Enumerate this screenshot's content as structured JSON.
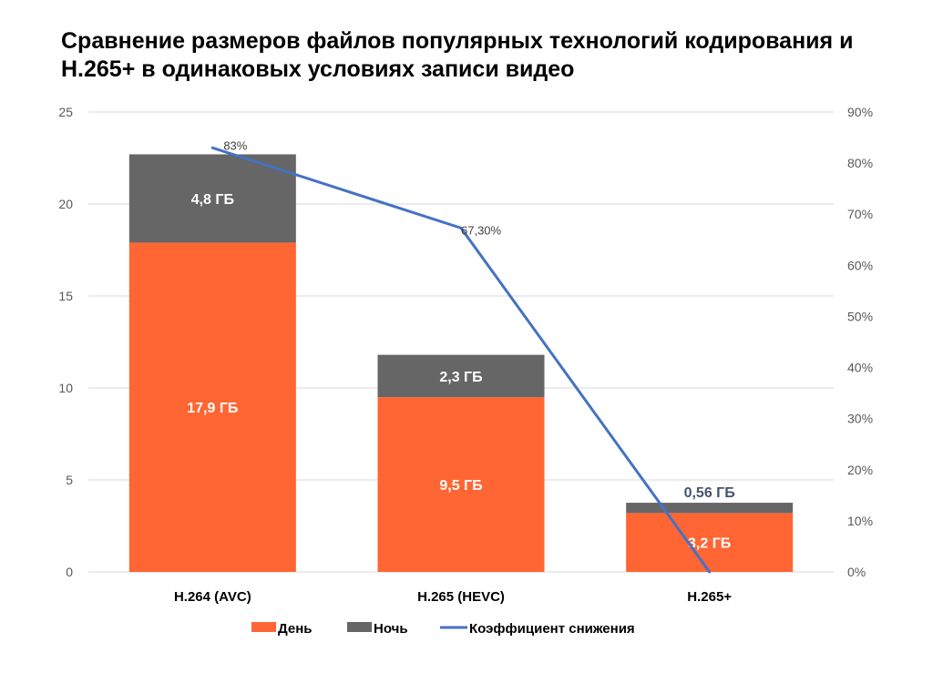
{
  "chart_data": {
    "type": "bar",
    "title": "Сравнение размеров файлов популярных технологий кодирования и H.265+ в одинаковых условиях записи видео",
    "categories": [
      "H.264 (AVC)",
      "H.265 (HEVC)",
      "H.265+"
    ],
    "series": [
      {
        "name": "День",
        "type": "bar",
        "stacked": true,
        "axis": "left",
        "color": "#FF6633",
        "values": [
          17.9,
          9.5,
          3.2
        ],
        "labels": [
          "17,9 ГБ",
          "9,5 ГБ",
          "3,2 ГБ"
        ]
      },
      {
        "name": "Ночь",
        "type": "bar",
        "stacked": true,
        "axis": "left",
        "color": "#666666",
        "values": [
          4.8,
          2.3,
          0.56
        ],
        "labels": [
          "4,8 ГБ",
          "2,3 ГБ",
          "0,56 ГБ"
        ]
      },
      {
        "name": "Коэффициент снижения",
        "type": "line",
        "axis": "right",
        "color": "#4472C4",
        "values": [
          83,
          67.3,
          0
        ],
        "labels": [
          "83%",
          "67,30%",
          ""
        ]
      }
    ],
    "ylim": [
      0,
      25
    ],
    "yticks": [
      "0",
      "5",
      "10",
      "15",
      "20",
      "25"
    ],
    "y2lim": [
      0,
      90
    ],
    "y2ticks": [
      "0%",
      "10%",
      "20%",
      "30%",
      "40%",
      "50%",
      "60%",
      "70%",
      "80%",
      "90%"
    ],
    "grid": true,
    "legend": "bottom"
  }
}
